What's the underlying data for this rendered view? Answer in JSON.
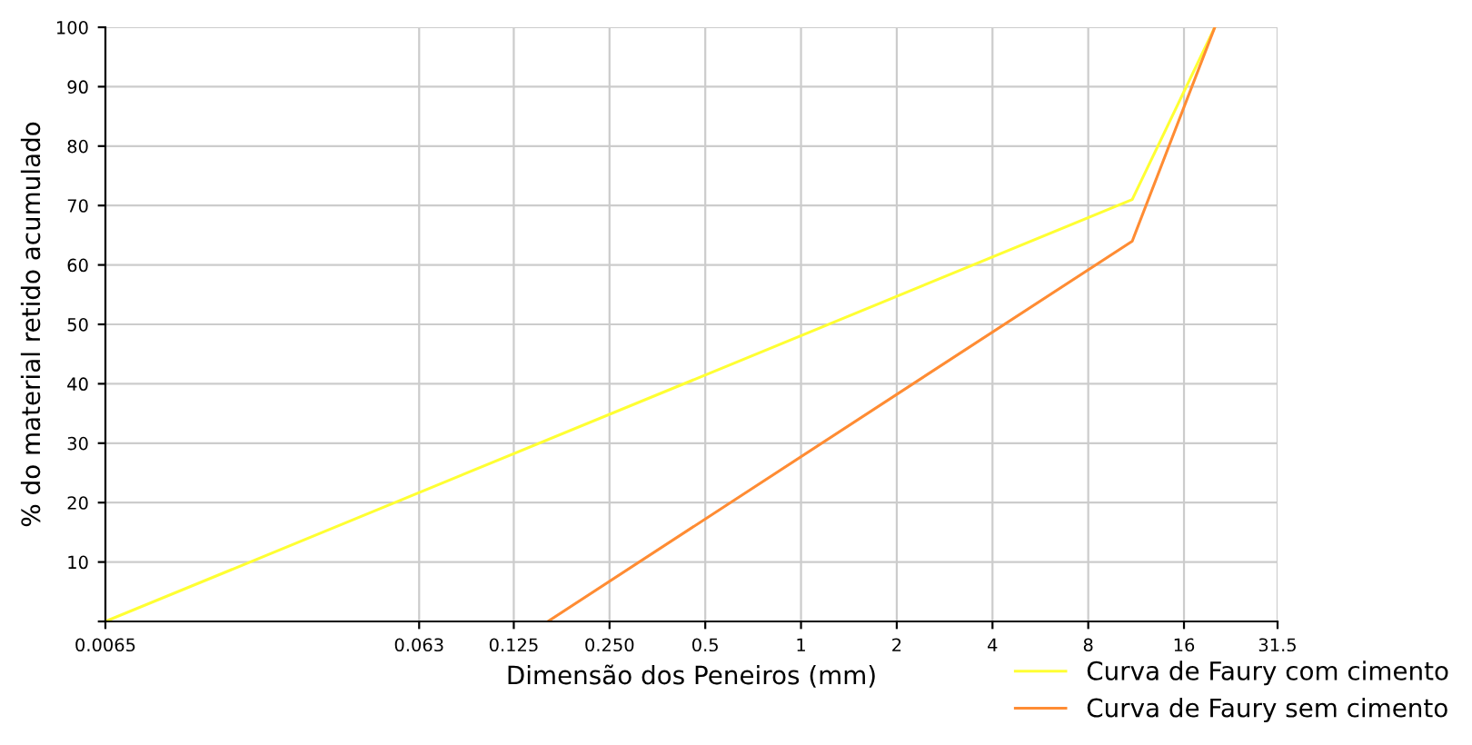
{
  "chart_data": {
    "type": "line",
    "xlabel": "Dimensão dos Peneiros (mm)",
    "ylabel": "% do material retido acumulado",
    "series": [
      {
        "name": "Curva de Faury com cimento",
        "color": "#ffff33",
        "x": [
          0.0065,
          11,
          20
        ],
        "values": [
          0,
          71,
          100
        ]
      },
      {
        "name": "Curva de Faury sem cimento",
        "color": "#ff8c33",
        "x": [
          0.16,
          11,
          20
        ],
        "values": [
          0,
          64,
          100
        ]
      }
    ],
    "xlim": [
      0.0065,
      31.5
    ],
    "xticks": [
      0.0065,
      0.063,
      {
        "value": 0.125,
        "label": "0.125"
      },
      {
        "value": 0.25,
        "label": "0.250"
      },
      0.5,
      1,
      2,
      4,
      8,
      16,
      31.5
    ],
    "ylim": [
      0,
      100
    ],
    "yticks": [
      {
        "value": 0,
        "label": null
      },
      10,
      20,
      30,
      40,
      50,
      60,
      70,
      80,
      90,
      100
    ],
    "log": "x",
    "grid": true,
    "legend": "bottom right",
    "marker": "none",
    "line_style": "solid"
  }
}
